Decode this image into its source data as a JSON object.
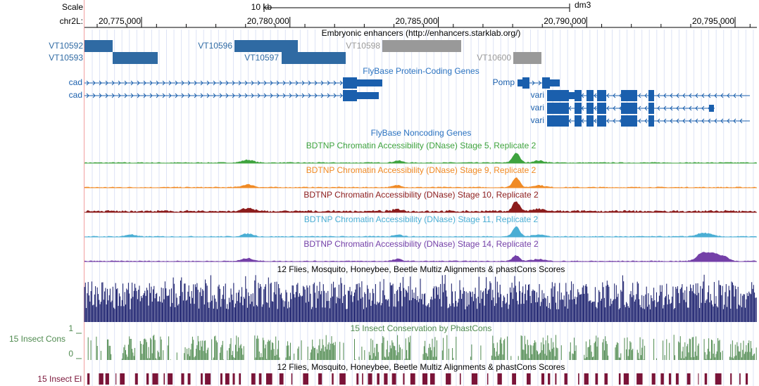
{
  "ruler": {
    "scale_label": "Scale",
    "scale_bar": "10 kb",
    "assembly": "dm3",
    "chrom": "chr2L:",
    "range": [
      20773078,
      20795735
    ],
    "ticks": [
      {
        "value": 20775000,
        "label": "20,775,000"
      },
      {
        "value": 20780000,
        "label": "20,780,000"
      },
      {
        "value": 20785000,
        "label": "20,785,000"
      },
      {
        "value": 20790000,
        "label": "20,790,000"
      },
      {
        "value": 20795000,
        "label": "20,795,000"
      }
    ]
  },
  "tracks": {
    "enhancers": {
      "title": "Embryonic enhancers (http://enhancers.starklab.org/)",
      "items": [
        "VT10592",
        "VT10593",
        "VT10596",
        "VT10597",
        "VT10598",
        "VT10600"
      ]
    },
    "protein_coding": {
      "title": "FlyBase Protein-Coding Genes",
      "genes": [
        "cad",
        "cad",
        "Pomp",
        "vari",
        "vari",
        "vari"
      ]
    },
    "noncoding": {
      "title": "FlyBase Noncoding Genes"
    },
    "dnase": [
      {
        "title": "BDTNP Chromatin Accessibility (DNase) Stage 5, Replicate 2",
        "color": "#3ea33e"
      },
      {
        "title": "BDTNP Chromatin Accessibility (DNase) Stage 9, Replicate 2",
        "color": "#f08a24"
      },
      {
        "title": "BDTNP Chromatin Accessibility (DNase) Stage 10, Replicate 2",
        "color": "#8c1c1c"
      },
      {
        "title": "BDTNP Chromatin Accessibility (DNase) Stage 11, Replicate 2",
        "color": "#4aaed4"
      },
      {
        "title": "BDTNP Chromatin Accessibility (DNase) Stage 14, Replicate 2",
        "color": "#7440a8"
      }
    ],
    "multiz": {
      "title": "12 Flies, Mosquito, Honeybee, Beetle Multiz Alignments & phastCons Scores",
      "color": "#0f1466"
    },
    "phastcons": {
      "title": "15 Insect Conservation by PhastCons",
      "label": "15 Insect Cons",
      "max_label": "1",
      "min_label": "0",
      "color": "#4f8a4f"
    },
    "elements": {
      "title": "12 Flies, Mosquito, Honeybee, Beetle Multiz Alignments & phastCons Scores",
      "label": "15 Insect El",
      "color": "#7a1438"
    }
  }
}
